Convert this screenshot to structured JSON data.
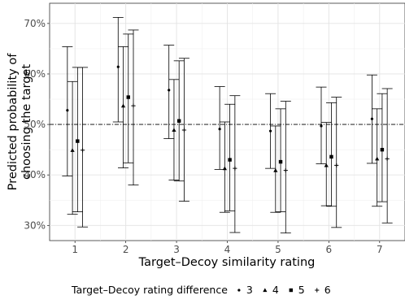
{
  "chart_data": {
    "type": "scatter",
    "subtype": "point-with-error-bars",
    "title": "",
    "xlabel": "Target–Decoy similarity rating",
    "ylabel_lines": [
      "Predicted probability of",
      "choosing the target"
    ],
    "x": [
      1,
      2,
      3,
      4,
      5,
      6,
      7
    ],
    "x_tick_labels": [
      "1",
      "2",
      "3",
      "4",
      "5",
      "6",
      "7"
    ],
    "ylim": [
      0.27,
      0.74
    ],
    "y_ticks": [
      0.3,
      0.4,
      0.5,
      0.6,
      0.7
    ],
    "y_tick_labels": [
      "30%",
      "40%",
      "50%",
      "60%",
      "70%"
    ],
    "reference_line": {
      "y": 0.5,
      "style": "dashdot"
    },
    "grid": true,
    "legend": {
      "title": "Target–Decoy rating difference",
      "position": "bottom",
      "entries": [
        "3",
        "4",
        "5",
        "6"
      ]
    },
    "series": [
      {
        "name": "3",
        "marker": "dot",
        "values": [
          0.528,
          0.614,
          0.568,
          0.491,
          0.487,
          0.497,
          0.511
        ],
        "lower": [
          0.398,
          0.505,
          0.472,
          0.411,
          0.413,
          0.422,
          0.423
        ],
        "upper": [
          0.654,
          0.712,
          0.657,
          0.575,
          0.561,
          0.574,
          0.598
        ]
      },
      {
        "name": "4",
        "marker": "triangle",
        "values": [
          0.449,
          0.537,
          0.489,
          0.413,
          0.409,
          0.419,
          0.432
        ],
        "lower": [
          0.322,
          0.414,
          0.39,
          0.326,
          0.326,
          0.339,
          0.338
        ],
        "upper": [
          0.585,
          0.654,
          0.589,
          0.505,
          0.497,
          0.504,
          0.531
        ]
      },
      {
        "name": "5",
        "marker": "square",
        "values": [
          0.467,
          0.554,
          0.507,
          0.43,
          0.426,
          0.436,
          0.45
        ],
        "lower": [
          0.327,
          0.424,
          0.388,
          0.329,
          0.327,
          0.338,
          0.347
        ],
        "upper": [
          0.613,
          0.679,
          0.626,
          0.54,
          0.531,
          0.543,
          0.561
        ]
      },
      {
        "name": "6",
        "marker": "plus",
        "values": [
          0.449,
          0.537,
          0.489,
          0.413,
          0.409,
          0.419,
          0.432
        ],
        "lower": [
          0.297,
          0.38,
          0.348,
          0.286,
          0.285,
          0.296,
          0.305
        ],
        "upper": [
          0.613,
          0.687,
          0.631,
          0.557,
          0.546,
          0.554,
          0.571
        ]
      }
    ]
  }
}
